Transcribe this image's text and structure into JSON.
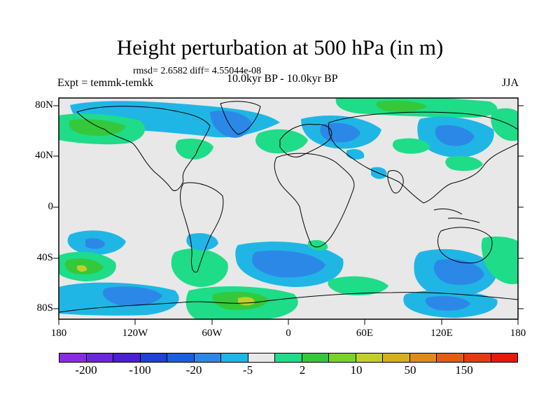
{
  "title": "Height perturbation at 500 hPa (in m)",
  "stats": "rmsd= 2.6582 diff= 4.55044e-08",
  "experiment": "Expt = temmk-temkk",
  "period": "10.0kyr BP - 10.0kyr BP",
  "season": "JJA",
  "lat_ticks": [
    "80N",
    "40N",
    "0",
    "40S",
    "80S"
  ],
  "lon_ticks": [
    "180",
    "120W",
    "60W",
    "0",
    "60E",
    "120E",
    "180"
  ],
  "colorbar": {
    "colors": [
      "#8a2be2",
      "#6a28dc",
      "#4b1fd4",
      "#2040d8",
      "#1a5fe0",
      "#2c88e6",
      "#1fb6e6",
      "#e8e8e8",
      "#1edc88",
      "#35c83a",
      "#7bd22a",
      "#c0d028",
      "#d4b01a",
      "#e08a1a",
      "#e35c12",
      "#e63a12",
      "#e8180e"
    ],
    "labels": [
      "-200",
      "-100",
      "-20",
      "-5",
      "2",
      "10",
      "50",
      "150"
    ]
  },
  "colors": {
    "land_outline": "#000000",
    "neutral": "#e8e8e8",
    "negative_light": "#1fb6e6",
    "negative_mid": "#2c88e6",
    "positive_light": "#1edc88",
    "positive_mid": "#35c83a",
    "positive_high": "#c0d028"
  }
}
